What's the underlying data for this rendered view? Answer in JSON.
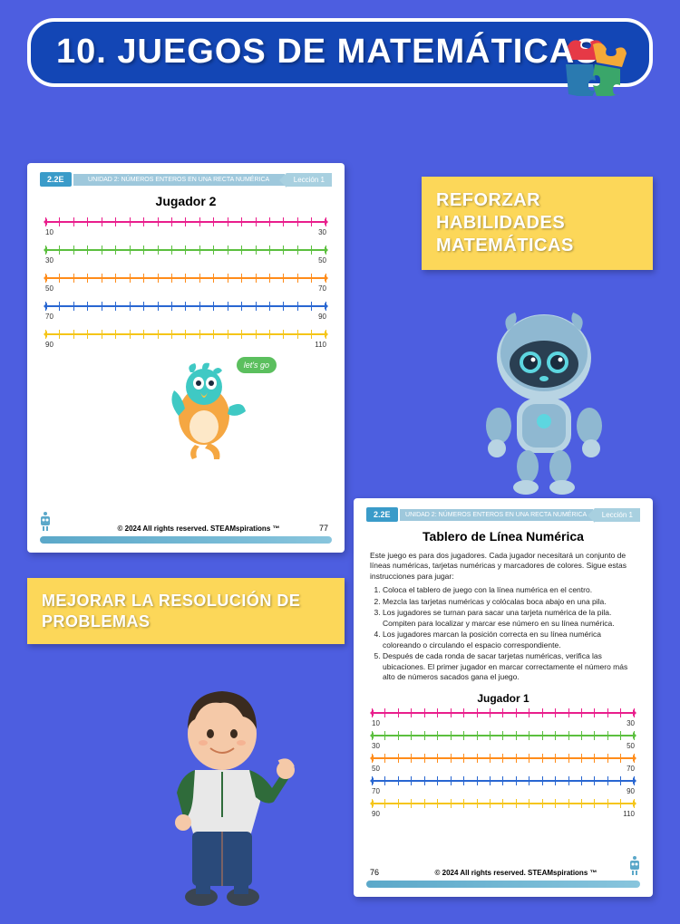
{
  "title": "10. JUEGOS DE MATEMÁTICAS",
  "callout1": "REFORZAR HABILIDADES MATEMÁTICAS",
  "callout2": "MEJORAR LA RESOLUCIÓN DE PROBLEMAS",
  "worksheet1": {
    "badge": "2.2E",
    "unit": "UNIDAD 2: NÚMEROS ENTEROS EN UNA RECTA NUMÉRICA",
    "lesson": "Lección 1",
    "title": "Jugador 2",
    "lines": [
      {
        "color": "#e91e8c",
        "start": "10",
        "end": "30"
      },
      {
        "color": "#5bbf3e",
        "start": "30",
        "end": "50"
      },
      {
        "color": "#ff8c1a",
        "start": "50",
        "end": "70"
      },
      {
        "color": "#2866d1",
        "start": "70",
        "end": "90"
      },
      {
        "color": "#f5c518",
        "start": "90",
        "end": "110"
      }
    ],
    "bubble": "let's go",
    "copyright": "© 2024 All rights reserved. STEAMspirations ™",
    "page": "77"
  },
  "worksheet2": {
    "badge": "2.2E",
    "unit": "UNIDAD 2: NÚMEROS ENTEROS EN UNA RECTA NUMÉRICA",
    "lesson": "Lección 1",
    "title": "Tablero de Línea Numérica",
    "intro": "Este juego es para dos jugadores. Cada jugador necesitará un conjunto de líneas numéricas, tarjetas numéricas y marcadores de colores. Sigue estas instrucciones para jugar:",
    "steps": [
      "Coloca el tablero de juego con la línea numérica en el centro.",
      "Mezcla las tarjetas numéricas y colócalas boca abajo en una pila.",
      "Los jugadores se turnan para sacar una tarjeta numérica de la pila. Compiten para localizar y marcar ese número en su línea numérica.",
      "Los jugadores marcan la posición correcta en su línea numérica coloreando o circulando el espacio correspondiente.",
      "Después de cada ronda de sacar tarjetas numéricas, verifica las ubicaciones. El primer jugador en marcar correctamente el número más alto de números sacados gana el juego."
    ],
    "subtitle": "Jugador 1",
    "lines": [
      {
        "color": "#e91e8c",
        "start": "10",
        "end": "30"
      },
      {
        "color": "#5bbf3e",
        "start": "30",
        "end": "50"
      },
      {
        "color": "#ff8c1a",
        "start": "50",
        "end": "70"
      },
      {
        "color": "#2866d1",
        "start": "70",
        "end": "90"
      },
      {
        "color": "#f5c518",
        "start": "90",
        "end": "110"
      }
    ],
    "copyright": "© 2024 All rights reserved. STEAMspirations ™",
    "page": "76"
  },
  "puzzle_colors": {
    "p1": "#e63946",
    "p2": "#f4a938",
    "p3": "#3aa66a",
    "p4": "#2a7ab0"
  }
}
